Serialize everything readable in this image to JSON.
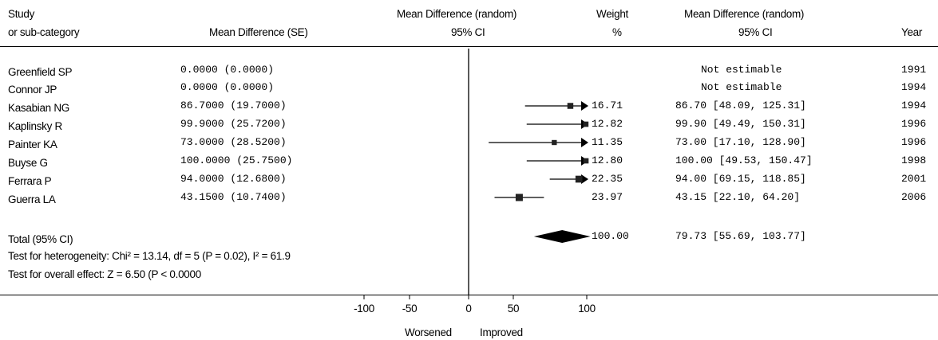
{
  "headers": {
    "study_line1": "Study",
    "study_line2": "or sub-category",
    "md_se": "Mean Difference (SE)",
    "plot_line1": "Mean Difference (random)",
    "plot_line2": "95% CI",
    "weight_line1": "Weight",
    "weight_line2": "%",
    "ci_line1": "Mean Difference (random)",
    "ci_line2": "95% CI",
    "year": "Year"
  },
  "studies": [
    {
      "name": "Greenfield SP",
      "md_se": "0.0000  (0.0000)",
      "weight": "",
      "ci_text": "Not estimable",
      "year": "1991"
    },
    {
      "name": "Connor JP",
      "md_se": "0.0000  (0.0000)",
      "weight": "",
      "ci_text": "Not estimable",
      "year": "1994"
    },
    {
      "name": "Kasabian NG",
      "md_se": "86.7000  (19.7000)",
      "weight": "16.71",
      "ci_text": "86.70 [48.09, 125.31]",
      "year": "1994"
    },
    {
      "name": "Kaplinsky R",
      "md_se": "99.9000  (25.7200)",
      "weight": "12.82",
      "ci_text": "99.90 [49.49, 150.31]",
      "year": "1996"
    },
    {
      "name": "Painter KA",
      "md_se": "73.0000  (28.5200)",
      "weight": "11.35",
      "ci_text": "73.00 [17.10, 128.90]",
      "year": "1996"
    },
    {
      "name": "Buyse G",
      "md_se": "100.0000  (25.7500)",
      "weight": "12.80",
      "ci_text": "100.00 [49.53, 150.47]",
      "year": "1998"
    },
    {
      "name": "Ferrara P",
      "md_se": "94.0000  (12.6800)",
      "weight": "22.35",
      "ci_text": "94.00 [69.15, 118.85]",
      "year": "2001"
    },
    {
      "name": "Guerra LA",
      "md_se": "43.1500  (10.7400)",
      "weight": "23.97",
      "ci_text": "43.15 [22.10, 64.20]",
      "year": "2006"
    }
  ],
  "total": {
    "label": "Total (95% CI)",
    "weight": "100.00",
    "ci_text": "79.73 [55.69, 103.77]",
    "heterogeneity": "Test for heterogeneity: Chi² = 13.14, df = 5 (P = 0.02), I² = 61.9",
    "overall": "Test for overall effect: Z = 6.50 (P < 0.0000"
  },
  "axis": {
    "ticks": [
      "-100",
      "-50",
      "0",
      "50",
      "100"
    ],
    "left_label": "Worsened",
    "right_label": "Improved"
  },
  "chart_data": {
    "type": "forest",
    "xlim": [
      -100,
      100
    ],
    "xticks": [
      -100,
      -50,
      0,
      50,
      100
    ],
    "estimates": [
      {
        "study": "Greenfield SP",
        "md": 0.0,
        "lo": null,
        "hi": null,
        "weight": null
      },
      {
        "study": "Connor JP",
        "md": 0.0,
        "lo": null,
        "hi": null,
        "weight": null
      },
      {
        "study": "Kasabian NG",
        "md": 86.7,
        "lo": 48.09,
        "hi": 125.31,
        "weight": 16.71
      },
      {
        "study": "Kaplinsky R",
        "md": 99.9,
        "lo": 49.49,
        "hi": 150.31,
        "weight": 12.82
      },
      {
        "study": "Painter KA",
        "md": 73.0,
        "lo": 17.1,
        "hi": 128.9,
        "weight": 11.35
      },
      {
        "study": "Buyse G",
        "md": 100.0,
        "lo": 49.53,
        "hi": 150.47,
        "weight": 12.8
      },
      {
        "study": "Ferrara P",
        "md": 94.0,
        "lo": 69.15,
        "hi": 118.85,
        "weight": 22.35
      },
      {
        "study": "Guerra LA",
        "md": 43.15,
        "lo": 22.1,
        "hi": 64.2,
        "weight": 23.97
      }
    ],
    "pooled": {
      "md": 79.73,
      "lo": 55.69,
      "hi": 103.77,
      "weight": 100.0
    }
  }
}
